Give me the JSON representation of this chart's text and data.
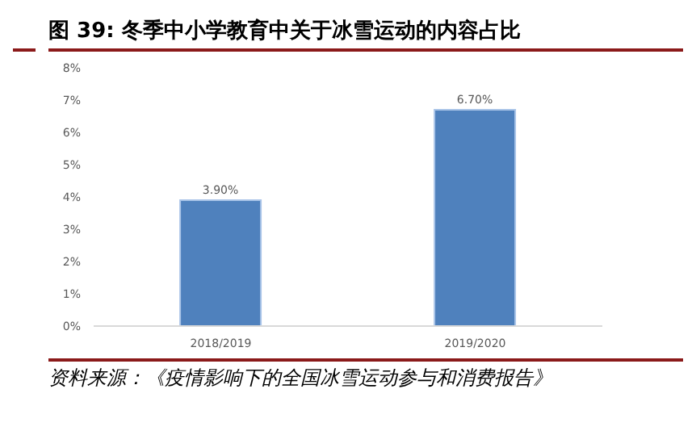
{
  "chart_data": {
    "type": "bar",
    "title": "图 39: 冬季中小学教育中关于冰雪运动的内容占比",
    "categories": [
      "2018/2019",
      "2019/2020"
    ],
    "values": [
      3.9,
      6.7
    ],
    "value_labels": [
      "3.90%",
      "6.70%"
    ],
    "color": "#4f81bd",
    "ylim": [
      0,
      8
    ],
    "yticks": [
      {
        "value": 0,
        "label": "0%"
      },
      {
        "value": 1,
        "label": "1%"
      },
      {
        "value": 2,
        "label": "2%"
      },
      {
        "value": 3,
        "label": "3%"
      },
      {
        "value": 4,
        "label": "4%"
      },
      {
        "value": 5,
        "label": "5%"
      },
      {
        "value": 6,
        "label": "6%"
      },
      {
        "value": 7,
        "label": "7%"
      },
      {
        "value": 8,
        "label": "8%"
      }
    ],
    "grid": false,
    "annotations": [
      "资料来源：《疫情影响下的全国冰雪运动参与和消费报告》"
    ]
  }
}
